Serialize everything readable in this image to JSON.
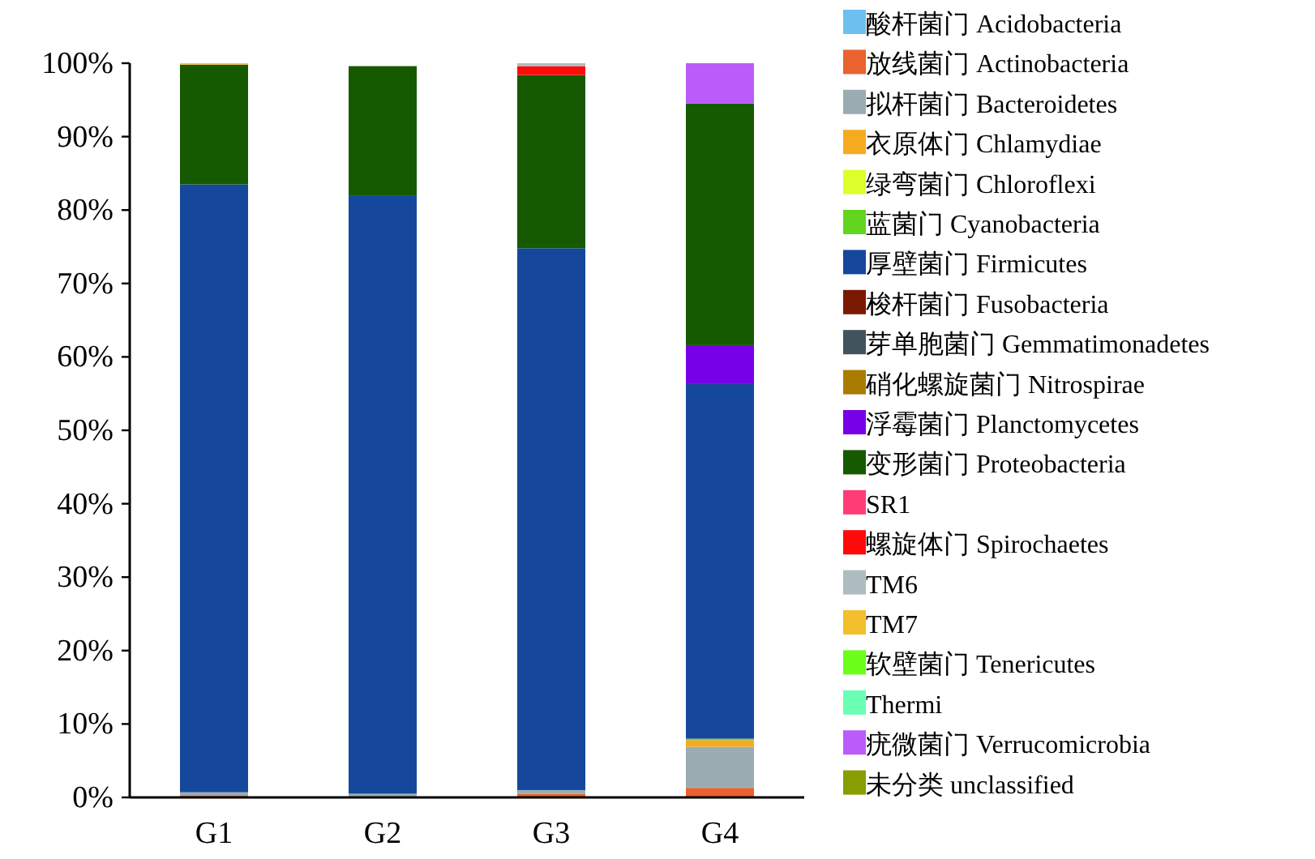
{
  "chart_data": {
    "type": "bar",
    "stacked": true,
    "legend": "right",
    "grid": false,
    "categories": [
      "G1",
      "G2",
      "G3",
      "G4"
    ],
    "ylim": [
      0,
      100
    ],
    "yticks": [
      {
        "value": 0,
        "label": "0%"
      },
      {
        "value": 10,
        "label": "10%"
      },
      {
        "value": 20,
        "label": "20%"
      },
      {
        "value": 30,
        "label": "30%"
      },
      {
        "value": 40,
        "label": "40%"
      },
      {
        "value": 50,
        "label": "50%"
      },
      {
        "value": 60,
        "label": "60%"
      },
      {
        "value": 70,
        "label": "70%"
      },
      {
        "value": 80,
        "label": "80%"
      },
      {
        "value": 90,
        "label": "90%"
      },
      {
        "value": 100,
        "label": "100%"
      }
    ],
    "series": [
      {
        "name": "酸杆菌门 Acidobacteria",
        "color": "#6dbff0",
        "values": [
          0,
          0,
          0,
          0
        ]
      },
      {
        "name": "放线菌门 Actinobacteria",
        "color": "#e9622f",
        "values": [
          0.3,
          null,
          0.5,
          1.3
        ]
      },
      {
        "name": "拟杆菌门 Bacteroidetes",
        "color": "#9aacb1",
        "values": [
          0.4,
          0.5,
          0.5,
          5.6
        ]
      },
      {
        "name": "衣原体门 Chlamydiae",
        "color": "#f5ab1f",
        "values": [
          0,
          0,
          0,
          0.9
        ]
      },
      {
        "name": "绿弯菌门 Chloroflexi",
        "color": "#ddff2a",
        "values": [
          0,
          0,
          0,
          0
        ]
      },
      {
        "name": "蓝菌门 Cyanobacteria",
        "color": "#62d61e",
        "values": [
          0,
          0,
          0,
          0.2
        ]
      },
      {
        "name": "厚壁菌门 Firmicutes",
        "color": "#15489c",
        "values": [
          82.8,
          81.5,
          73.8,
          48.3
        ]
      },
      {
        "name": "梭杆菌门 Fusobacteria",
        "color": "#7a1a03",
        "values": [
          0,
          0,
          0,
          0
        ]
      },
      {
        "name": "芽单胞菌门 Gemmatimonadetes",
        "color": "#41545c",
        "values": [
          0,
          0,
          0,
          0
        ]
      },
      {
        "name": "硝化螺旋菌门 Nitrospirae",
        "color": "#a97c00",
        "values": [
          0,
          0,
          0,
          0
        ]
      },
      {
        "name": "浮霉菌门 Planctomycetes",
        "color": "#7800e8",
        "values": [
          0,
          0,
          0,
          5.3
        ]
      },
      {
        "name": "变形菌门 Proteobacteria",
        "color": "#155a00",
        "values": [
          16.3,
          17.6,
          23.6,
          32.9
        ]
      },
      {
        "name": "SR1",
        "color": "#ff3c76",
        "values": [
          0,
          0,
          0,
          0
        ]
      },
      {
        "name": "螺旋体门 Spirochaetes",
        "color": "#ff0a0a",
        "values": [
          0,
          0,
          1.2,
          0
        ]
      },
      {
        "name": "TM6",
        "color": "#adbcbf",
        "values": [
          0,
          null,
          0.4,
          0
        ]
      },
      {
        "name": "TM7",
        "color": "#f3bf2d",
        "values": [
          0.2,
          0,
          0,
          0
        ]
      },
      {
        "name": "软壁菌门 Tenericutes",
        "color": "#6bff1a",
        "values": [
          0,
          0,
          0,
          0
        ]
      },
      {
        "name": "Thermi",
        "color": "#6bffb4",
        "values": [
          0,
          0,
          0,
          0
        ]
      },
      {
        "name": "疣微菌门 Verrucomicrobia",
        "color": "#bb5cfa",
        "values": [
          0,
          0,
          0,
          5.5
        ]
      },
      {
        "name": "未分类 unclassified",
        "color": "#879e00",
        "values": [
          0,
          0,
          0,
          0
        ]
      }
    ]
  }
}
